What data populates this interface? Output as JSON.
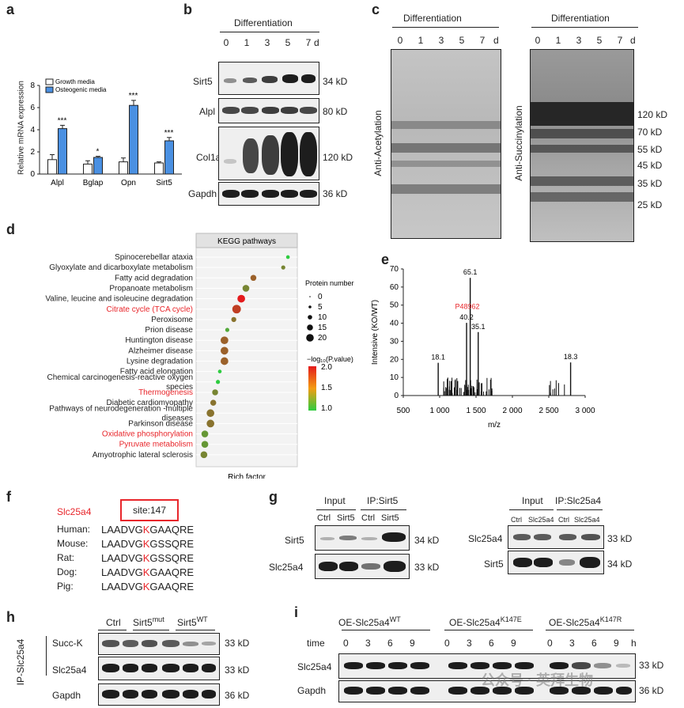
{
  "panels": {
    "a": "a",
    "b": "b",
    "c": "c",
    "d": "d",
    "e": "e",
    "f": "f",
    "g": "g",
    "h": "h",
    "i": "i"
  },
  "panel_a": {
    "legend": [
      "Growth media",
      "Osteogenic media"
    ],
    "ylabel": "Relative mRNA expression",
    "yticks": [
      "0",
      "2",
      "4",
      "6",
      "8"
    ],
    "categories": [
      "Alpl",
      "Bglap",
      "Opn",
      "Sirt5"
    ],
    "sig": [
      "***",
      "*",
      "***",
      "***"
    ],
    "colors": {
      "growth": "#ffffff",
      "osteogenic": "#4a90e2"
    }
  },
  "chart_data": [
    {
      "type": "bar",
      "categories": [
        "Alpl",
        "Bglap",
        "Opn",
        "Sirt5"
      ],
      "series": [
        {
          "name": "Growth media",
          "values": [
            1.3,
            0.9,
            1.1,
            1.0
          ],
          "errors": [
            0.45,
            0.3,
            0.35,
            0.1
          ]
        },
        {
          "name": "Osteogenic media",
          "values": [
            4.1,
            1.5,
            6.2,
            3.0
          ],
          "errors": [
            0.3,
            0.1,
            0.45,
            0.3
          ]
        }
      ],
      "title": "",
      "xlabel": "",
      "ylabel": "Relative mRNA expression",
      "ylim": [
        0,
        8
      ],
      "legend_position": "top-left"
    },
    {
      "type": "scatter",
      "title": "KEGG pathways",
      "xlabel": "Rich factor",
      "categories": [
        "Spinocerebellar ataxia",
        "Glyoxylate and dicarboxylate metabolism",
        "Fatty acid degradation",
        "Propanoate metabolism",
        "Valine, leucine and isoleucine degradation",
        "Citrate cycle (TCA cycle)",
        "Peroxisome",
        "Prion disease",
        "Huntington disease",
        "Alzheimer disease",
        "Lysine degradation",
        "Fatty acid elongation",
        "Chemical carcinogenesis-reactive oxygen species",
        "Thermogenesis",
        "Diabetic cardiomyopathy",
        "Pathways of neurodegeneration -multiple diseases",
        "Parkinson disease",
        "Oxidative phosphorylation",
        "Pyruvate metabolism",
        "Amyotrophic lateral sclerosis"
      ],
      "rich_factor": [
        0.95,
        0.9,
        0.58,
        0.5,
        0.45,
        0.4,
        0.37,
        0.3,
        0.27,
        0.27,
        0.27,
        0.22,
        0.2,
        0.17,
        0.15,
        0.12,
        0.12,
        0.06,
        0.06,
        0.05
      ],
      "protein_number": [
        3,
        4,
        8,
        10,
        12,
        14,
        6,
        4,
        12,
        12,
        12,
        3,
        4,
        8,
        8,
        12,
        12,
        10,
        10,
        10
      ],
      "neg_log10_p": [
        1.0,
        1.4,
        1.6,
        1.4,
        2.0,
        1.8,
        1.5,
        1.2,
        1.6,
        1.6,
        1.6,
        1.0,
        1.0,
        1.4,
        1.5,
        1.5,
        1.5,
        1.3,
        1.3,
        1.4
      ],
      "highlighted": [
        "Citrate cycle (TCA cycle)",
        "Thermogenesis",
        "Oxidative phosphorylation",
        "Pyruvate metabolism"
      ],
      "size_legend": {
        "title": "Protein number",
        "values": [
          "0",
          "5",
          "10",
          "15",
          "20"
        ]
      },
      "color_legend": {
        "title": "−log₁₀(P.value)",
        "values": [
          "2.0",
          "1.5",
          "1.0"
        ],
        "colors": [
          "#e41a1c",
          "#f39c12",
          "#2ecc40"
        ]
      }
    },
    {
      "type": "bar",
      "title": "",
      "xlabel": "m/z",
      "ylabel": "Intensive (KO/WT)",
      "xlim": [
        500,
        3000
      ],
      "ylim": [
        0,
        70
      ],
      "xticks": [
        "500",
        "1 000",
        "1 500",
        "2 000",
        "2 500",
        "3 000"
      ],
      "yticks": [
        "0",
        "10",
        "20",
        "30",
        "40",
        "50",
        "60",
        "70"
      ],
      "peaks": [
        {
          "x": 980,
          "y": 18.1,
          "label": "18.1"
        },
        {
          "x": 1370,
          "y": 40.2,
          "label": "40.2"
        },
        {
          "x": 1420,
          "y": 65.1,
          "label": "65.1"
        },
        {
          "x": 1530,
          "y": 35.1,
          "label": "35.1"
        },
        {
          "x": 2800,
          "y": 18.3,
          "label": "18.3"
        }
      ],
      "peak_annotation": "P48962"
    }
  ],
  "panel_b": {
    "header": "Differentiation",
    "lanes": [
      "0",
      "1",
      "3",
      "5",
      "7"
    ],
    "unit": "d",
    "rows": [
      {
        "label": "Sirt5",
        "kd": "34 kD"
      },
      {
        "label": "Alpl",
        "kd": "80 kD"
      },
      {
        "label": "Col1a",
        "kd": "120 kD"
      },
      {
        "label": "Gapdh",
        "kd": "36 kD"
      }
    ]
  },
  "panel_c": {
    "header_left": "Differentiation",
    "header_right": "Differentiation",
    "lanes": [
      "0",
      "1",
      "3",
      "5",
      "7"
    ],
    "unit": "d",
    "label_left": "Anti-Acetylation",
    "label_right": "Anti-Succinylation",
    "markers": [
      "120 kD",
      "70 kD",
      "55 kD",
      "45 kD",
      "35 kD",
      "25 kD"
    ]
  },
  "panel_f": {
    "protein": "Slc25a4",
    "site": "site:147",
    "species": [
      {
        "name": "Human:",
        "pre": "LAADVG",
        "k": "K",
        "post": "GAAQRE"
      },
      {
        "name": "Mouse:",
        "pre": "LAADVG",
        "k": "K",
        "post": "GSSQRE"
      },
      {
        "name": "Rat:",
        "pre": "LAADVG",
        "k": "K",
        "post": "GSSQRE"
      },
      {
        "name": "Dog:",
        "pre": "LAADVG",
        "k": "K",
        "post": "GAAQRE"
      },
      {
        "name": "Pig:",
        "pre": "LAADVG",
        "k": "K",
        "post": "GAAQRE"
      }
    ]
  },
  "panel_g": {
    "left": {
      "input": "Input",
      "ip": "IP:Sirt5",
      "lanes": [
        "Ctrl",
        "Sirt5",
        "Ctrl",
        "Sirt5"
      ],
      "rows": [
        {
          "label": "Sirt5",
          "kd": "34 kD"
        },
        {
          "label": "Slc25a4",
          "kd": "33 kD"
        }
      ]
    },
    "right": {
      "input": "Input",
      "ip": "IP:Slc25a4",
      "lanes": [
        "Ctrl",
        "Slc25a4",
        "Ctrl",
        "Slc25a4"
      ],
      "rows": [
        {
          "label": "Slc25a4",
          "kd": "33 kD"
        },
        {
          "label": "Sirt5",
          "kd": "34 kD"
        }
      ]
    }
  },
  "panel_h": {
    "groups": [
      {
        "name": "Ctrl",
        "sup": ""
      },
      {
        "name": "Sirt5",
        "sup": "mut"
      },
      {
        "name": "Sirt5",
        "sup": "WT"
      }
    ],
    "ip_label": "IP-Slc25a4",
    "rows": [
      {
        "label": "Succ-K",
        "kd": "33 kD"
      },
      {
        "label": "Slc25a4",
        "kd": "33 kD"
      },
      {
        "label": "Gapdh",
        "kd": "36 kD"
      }
    ]
  },
  "panel_i": {
    "groups": [
      {
        "name": "OE-Slc25a4",
        "sup": "WT"
      },
      {
        "name": "OE-Slc25a4",
        "sup": "K147E"
      },
      {
        "name": "OE-Slc25a4",
        "sup": "K147R"
      }
    ],
    "time_label": "time",
    "time_points": [
      "0",
      "3",
      "6",
      "9"
    ],
    "unit": "h",
    "rows": [
      {
        "label": "Slc25a4",
        "kd": "33 kD"
      },
      {
        "label": "Gapdh",
        "kd": "36 kD"
      }
    ]
  },
  "watermark": "公众号 · 英拜生物"
}
